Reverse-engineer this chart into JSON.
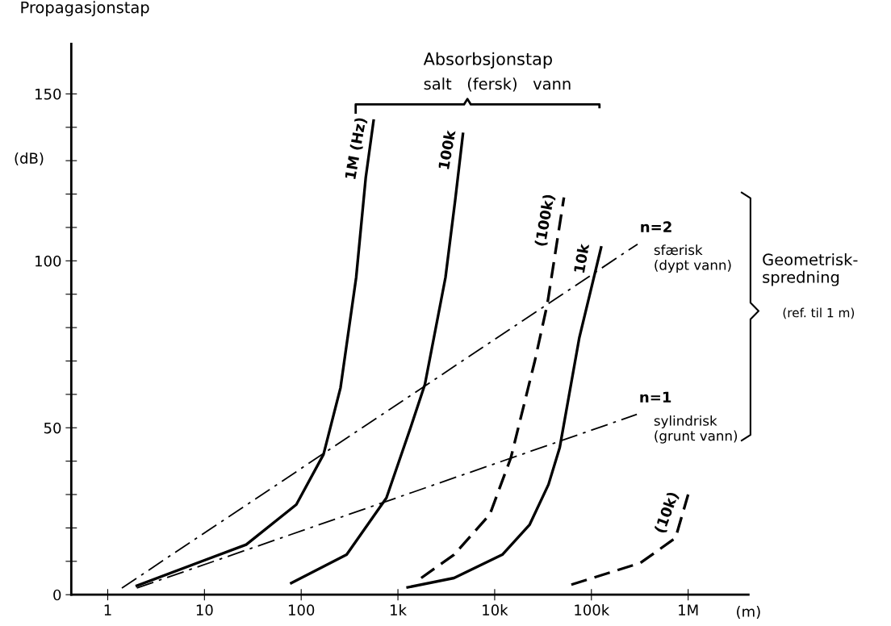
{
  "chart_data": {
    "type": "line",
    "ylabel": "Propagasjonstap",
    "xlabel": "(m)",
    "log": "x",
    "grid": false,
    "legend": false,
    "marker": "none",
    "xlim": [
      0.42,
      4200000
    ],
    "xticks": [
      {
        "value": 1,
        "label": "1"
      },
      {
        "value": 10,
        "label": "10"
      },
      {
        "value": 100,
        "label": "100"
      },
      {
        "value": 1000,
        "label": "1k"
      },
      {
        "value": 10000,
        "label": "10k"
      },
      {
        "value": 100000,
        "label": "100k"
      },
      {
        "value": 1000000,
        "label": "1M"
      }
    ],
    "ylim": [
      0,
      165
    ],
    "yticks": [
      0,
      {
        "value": 10,
        "label": null
      },
      {
        "value": 20,
        "label": null
      },
      {
        "value": 30,
        "label": null
      },
      {
        "value": 40,
        "label": null
      },
      50,
      {
        "value": 60,
        "label": null
      },
      {
        "value": 70,
        "label": null
      },
      {
        "value": 80,
        "label": null
      },
      {
        "value": 90,
        "label": null
      },
      100,
      {
        "value": 110,
        "label": null
      },
      {
        "value": 120,
        "label": null
      },
      {
        "value": 130,
        "label": null
      },
      {
        "value": 140,
        "label": null
      },
      150
    ],
    "series": [
      {
        "name": "1M (Hz)",
        "color": "#000000",
        "line_style": "solid",
        "x": [
          2,
          27,
          89,
          170,
          255,
          370,
          465,
          560
        ],
        "values": [
          2.7,
          15,
          27,
          42,
          62,
          95,
          125,
          142
        ]
      },
      {
        "name": "100k",
        "color": "#000000",
        "line_style": "solid",
        "x": [
          79,
          295,
          760,
          1350,
          1900,
          3100,
          3900,
          4700
        ],
        "values": [
          3.5,
          12,
          29,
          50,
          63,
          95,
          118,
          138
        ]
      },
      {
        "name": "(100k)",
        "color": "#000000",
        "line_style": "dashed",
        "x": [
          1740,
          3800,
          8900,
          14700,
          26000,
          35000,
          52000
        ],
        "values": [
          5,
          12,
          24,
          41,
          70,
          87,
          119
        ]
      },
      {
        "name": "10k",
        "color": "#000000",
        "line_style": "solid",
        "x": [
          1260,
          3800,
          12000,
          23000,
          36000,
          47000,
          75000,
          126000
        ],
        "values": [
          2.2,
          5,
          12,
          21,
          33,
          44,
          77,
          104
        ]
      },
      {
        "name": "(10k)",
        "color": "#000000",
        "line_style": "dashed",
        "x": [
          62000,
          320000,
          740000,
          1000000
        ],
        "values": [
          3,
          9.5,
          17,
          30
        ]
      },
      {
        "name": "n=2",
        "color": "#000000",
        "line_style": "dashdot",
        "x": [
          1.4,
          300000
        ],
        "values": [
          2,
          105
        ]
      },
      {
        "name": "n=1",
        "color": "#000000",
        "line_style": "dashdot",
        "x": [
          2,
          295000
        ],
        "values": [
          2,
          54
        ]
      }
    ],
    "annotations": [
      "(dB)",
      "Absorbsjonstap",
      "salt   (fersk)   vann",
      "sfærisk\n(dypt vann)",
      "sylindrisk\n(grunt vann)",
      "Geometrisk-\nspredning",
      "(ref. til 1 m)"
    ]
  }
}
